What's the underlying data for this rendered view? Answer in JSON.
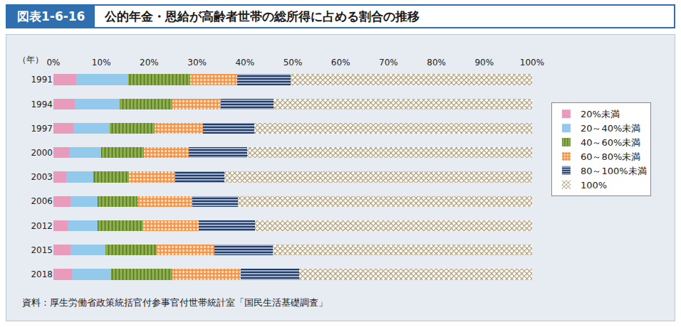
{
  "chart_data": {
    "type": "bar",
    "figure_number": "図表1-6-16",
    "title": "公的年金・恩給が高齢者世帯の総所得に占める割合の推移",
    "source": "資料：厚生労働省政策統括官付参事官付世帯統計室「国民生活基礎調査」",
    "y_label": "（年）",
    "orientation": "horizontal",
    "stacked": true,
    "grid": false,
    "legend": "right",
    "categories": [
      "1991",
      "1994",
      "1997",
      "2000",
      "2003",
      "2006",
      "2012",
      "2015",
      "2018"
    ],
    "xlim": [
      0,
      100
    ],
    "xticks": [
      {
        "value": 0,
        "label": "0%"
      },
      {
        "value": 10,
        "label": "10%"
      },
      {
        "value": 20,
        "label": "20%"
      },
      {
        "value": 30,
        "label": "30%"
      },
      {
        "value": 40,
        "label": "40%"
      },
      {
        "value": 50,
        "label": "50%"
      },
      {
        "value": 60,
        "label": "60%"
      },
      {
        "value": 70,
        "label": "70%"
      },
      {
        "value": 80,
        "label": "80%"
      },
      {
        "value": 90,
        "label": "90%"
      },
      {
        "value": 100,
        "label": "100%"
      }
    ],
    "series": [
      {
        "name": "20%未満",
        "color": "#e99bbb",
        "marker": "solid",
        "values": [
          4.7,
          4.4,
          4.1,
          3.2,
          2.7,
          3.5,
          3.0,
          3.5,
          3.9
        ]
      },
      {
        "name": "20～40%未満",
        "color": "#93c9ea",
        "marker": "solid",
        "values": [
          10.9,
          9.5,
          7.7,
          6.8,
          5.6,
          5.7,
          6.2,
          7.4,
          8.2
        ]
      },
      {
        "name": "40～60%未満",
        "color": "#8fb24c",
        "marker": "vertical",
        "values": [
          13.0,
          10.9,
          9.4,
          8.9,
          7.4,
          8.3,
          9.6,
          10.6,
          12.7
        ]
      },
      {
        "name": "60～80%未満",
        "color": "#f4954a",
        "marker": "dotted",
        "values": [
          9.8,
          10.1,
          10.1,
          9.4,
          9.7,
          11.5,
          11.5,
          12.2,
          14.4
        ]
      },
      {
        "name": "80～100%未満",
        "color": "#1f3c6e",
        "marker": "horizontal",
        "values": [
          11.2,
          11.1,
          10.6,
          12.2,
          10.3,
          9.6,
          11.8,
          12.1,
          12.2
        ]
      },
      {
        "name": "100%",
        "color": "#a8946a",
        "marker": "crosshatch",
        "values": [
          50.4,
          54.0,
          58.1,
          59.5,
          64.3,
          61.4,
          57.9,
          54.2,
          48.6
        ]
      }
    ]
  }
}
